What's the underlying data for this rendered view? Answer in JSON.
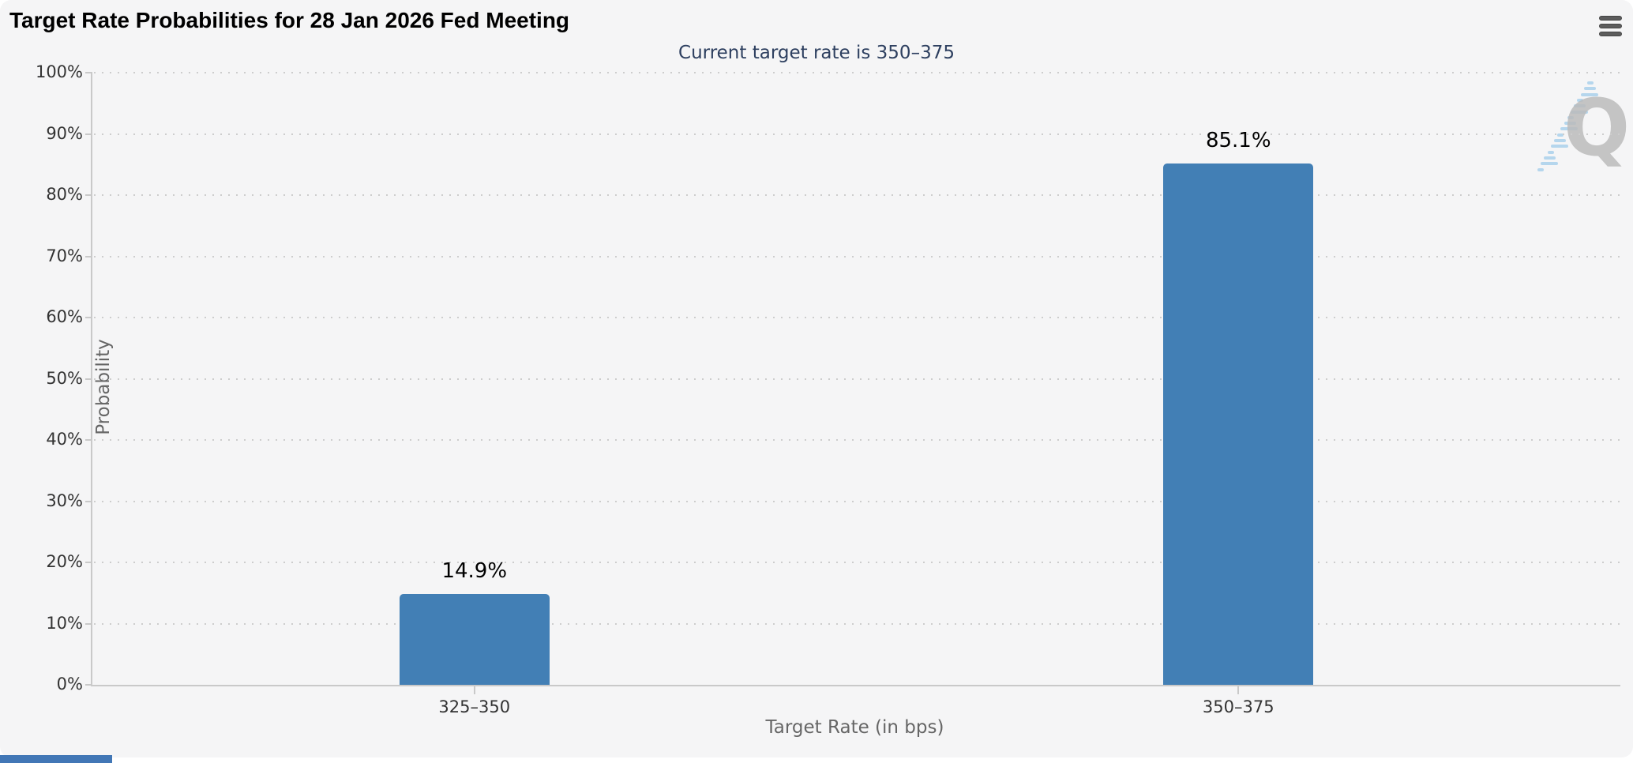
{
  "header": {
    "title": "Target Rate Probabilities for 28 Jan 2026 Fed Meeting",
    "menu_icon": "hamburger-menu-icon"
  },
  "watermark": {
    "icon": "q-logo-watermark",
    "letter": "Q"
  },
  "colors": {
    "bar": "#427fb5",
    "subtitle_text": "#2e4060",
    "card_background": "#f5f5f6",
    "grid": "#cdcdcd",
    "axis": "#c9c9c9",
    "accent_strip": "#4277b6"
  },
  "chart_data": {
    "type": "bar",
    "title": "Target Rate Probabilities for 28 Jan 2026 Fed Meeting",
    "subtitle": "Current target rate is 350–375",
    "categories": [
      "325–350",
      "350–375"
    ],
    "values": [
      14.9,
      85.1
    ],
    "value_labels": [
      "14.9%",
      "85.1%"
    ],
    "xlabel": "Target Rate (in bps)",
    "ylabel": "Probability",
    "ylim": [
      0,
      100
    ],
    "ytick_step": 10,
    "ytick_labels": [
      "0%",
      "10%",
      "20%",
      "30%",
      "40%",
      "50%",
      "60%",
      "70%",
      "80%",
      "90%",
      "100%"
    ],
    "grid": "dotted-horizontal",
    "legend": "none",
    "bar_color": "#427fb5"
  }
}
